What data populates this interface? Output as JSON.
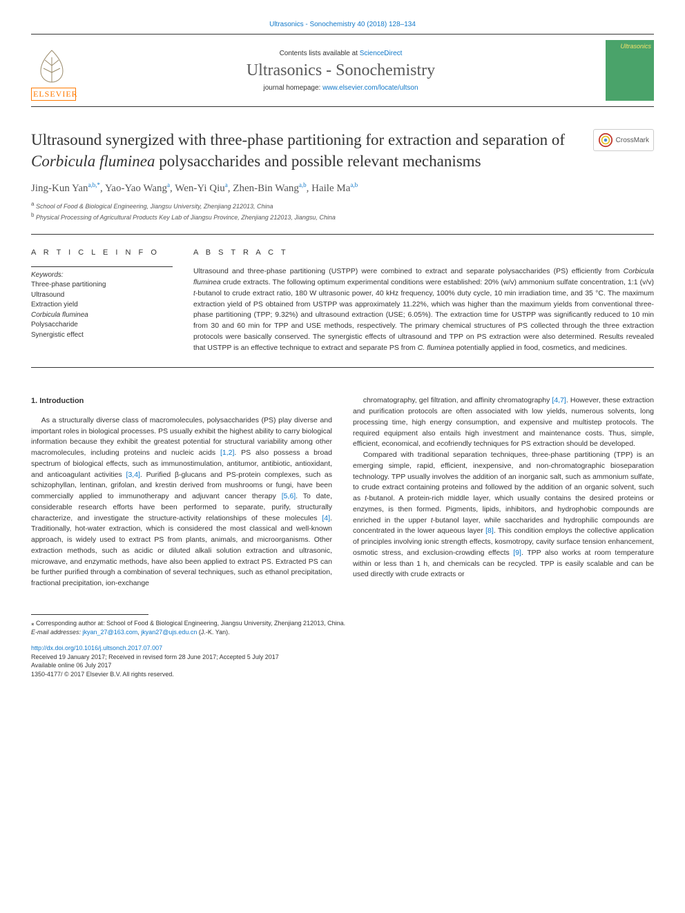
{
  "header": {
    "top_link": "Ultrasonics - Sonochemistry 40 (2018) 128–134",
    "contents_line_prefix": "Contents lists available at ",
    "contents_link": "ScienceDirect",
    "journal": "Ultrasonics - Sonochemistry",
    "homepage_prefix": "journal homepage: ",
    "homepage_url": "www.elsevier.com/locate/ultson",
    "cover_label": "Ultrasonics",
    "publisher_logo_text": "ELSEVIER",
    "colors": {
      "link": "#1178c8",
      "elsevier_orange": "#ff7a00",
      "cover_bg": "#4aa36a",
      "cover_text": "#f5e36a",
      "rule": "#333333",
      "text": "#333333"
    }
  },
  "article": {
    "title_parts": [
      "Ultrasound synergized with three-phase partitioning for extraction and separation of ",
      "Corbicula fluminea",
      " polysaccharides and possible relevant mechanisms"
    ],
    "crossmark_label": "CrossMark",
    "authors_html": "Jing-Kun Yan<sup>a,b,*</sup>, Yao-Yao Wang<sup>a</sup>, Wen-Yi Qiu<sup>a</sup>, Zhen-Bin Wang<sup>a,b</sup>, Haile Ma<sup>a,b</sup>",
    "affiliations": [
      {
        "key": "a",
        "text": "School of Food & Biological Engineering, Jiangsu University, Zhenjiang 212013, China"
      },
      {
        "key": "b",
        "text": "Physical Processing of Agricultural Products Key Lab of Jiangsu Province, Zhenjiang 212013, Jiangsu, China"
      }
    ]
  },
  "info": {
    "heading": "A R T I C L E  I N F O",
    "keywords_label": "Keywords:",
    "keywords": [
      "Three-phase partitioning",
      "Ultrasound",
      "Extraction yield",
      "Corbicula fluminea",
      "Polysaccharide",
      "Synergistic effect"
    ],
    "species_keyword_index": 3
  },
  "abstract": {
    "heading": "A B S T R A C T",
    "text_parts": [
      "Ultrasound and three-phase partitioning (USTPP) were combined to extract and separate polysaccharides (PS) efficiently from ",
      "Corbicula fluminea",
      " crude extracts. The following optimum experimental conditions were established: 20% (w/v) ammonium sulfate concentration, 1:1 (v/v) ",
      "t",
      "-butanol to crude extract ratio, 180 W ultrasonic power, 40 kHz frequency, 100% duty cycle, 10 min irradiation time, and 35 °C. The maximum extraction yield of PS obtained from USTPP was approximately 11.22%, which was higher than the maximum yields from conventional three-phase partitioning (TPP; 9.32%) and ultrasound extraction (USE; 6.05%). The extraction time for USTPP was significantly reduced to 10 min from 30 and 60 min for TPP and USE methods, respectively. The primary chemical structures of PS collected through the three extraction protocols were basically conserved. The synergistic effects of ultrasound and TPP on PS extraction were also determined. Results revealed that USTPP is an effective technique to extract and separate PS from ",
      "C. fluminea",
      " potentially applied in food, cosmetics, and medicines."
    ]
  },
  "body": {
    "section_heading": "1. Introduction",
    "col1_paragraphs": [
      "As a structurally diverse class of macromolecules, polysaccharides (PS) play diverse and important roles in biological processes. PS usually exhibit the highest ability to carry biological information because they exhibit the greatest potential for structural variability among other macromolecules, including proteins and nucleic acids <span class=\"ref\">[1,2]</span>. PS also possess a broad spectrum of biological effects, such as immunostimulation, antitumor, antibiotic, antioxidant, and anticoagulant activities <span class=\"ref\">[3,4]</span>. Purified β-glucans and PS-protein complexes, such as schizophyllan, lentinan, grifolan, and krestin derived from mushrooms or fungi, have been commercially applied to immunotherapy and adjuvant cancer therapy <span class=\"ref\">[5,6]</span>. To date, considerable research efforts have been performed to separate, purify, structurally characterize, and investigate the structure-activity relationships of these molecules <span class=\"ref\">[4]</span>. Traditionally, hot-water extraction, which is considered the most classical and well-known approach, is widely used to extract PS from plants, animals, and microorganisms. Other extraction methods, such as acidic or diluted alkali solution extraction and ultrasonic, microwave, and enzymatic methods, have also been applied to extract PS. Extracted PS can be further purified through a combination of several techniques, such as ethanol precipitation, fractional precipitation, ion-exchange"
    ],
    "col2_paragraphs": [
      "chromatography, gel filtration, and affinity chromatography <span class=\"ref\">[4,7]</span>. However, these extraction and purification protocols are often associated with low yields, numerous solvents, long processing time, high energy consumption, and expensive and multistep protocols. The required equipment also entails high investment and maintenance costs. Thus, simple, efficient, economical, and ecofriendly techniques for PS extraction should be developed.",
      "Compared with traditional separation techniques, three-phase partitioning (TPP) is an emerging simple, rapid, efficient, inexpensive, and non-chromatographic bioseparation technology. TPP usually involves the addition of an inorganic salt, such as ammonium sulfate, to crude extract containing proteins and followed by the addition of an organic solvent, such as <span class=\"species\">t</span>-butanol. A protein-rich middle layer, which usually contains the desired proteins or enzymes, is then formed. Pigments, lipids, inhibitors, and hydrophobic compounds are enriched in the upper <span class=\"species\">t</span>-butanol layer, while saccharides and hydrophilic compounds are concentrated in the lower aqueous layer <span class=\"ref\">[8]</span>. This condition employs the collective application of principles involving ionic strength effects, kosmotropy, cavity surface tension enhancement, osmotic stress, and exclusion-crowding effects <span class=\"ref\">[9]</span>. TPP also works at room temperature within or less than 1 h, and chemicals can be recycled. TPP is easily scalable and can be used directly with crude extracts or"
    ]
  },
  "footer": {
    "corresponding": "⁎ Corresponding author at: School of Food & Biological Engineering, Jiangsu University, Zhenjiang 212013, China.",
    "email_label": "E-mail addresses: ",
    "emails": [
      "jkyan_27@163.com",
      "jkyan27@ujs.edu.cn"
    ],
    "email_attr": " (J.-K. Yan).",
    "doi": "http://dx.doi.org/10.1016/j.ultsonch.2017.07.007",
    "received": "Received 19 January 2017; Received in revised form 28 June 2017; Accepted 5 July 2017",
    "available": "Available online 06 July 2017",
    "copyright": "1350-4177/ © 2017 Elsevier B.V. All rights reserved."
  }
}
